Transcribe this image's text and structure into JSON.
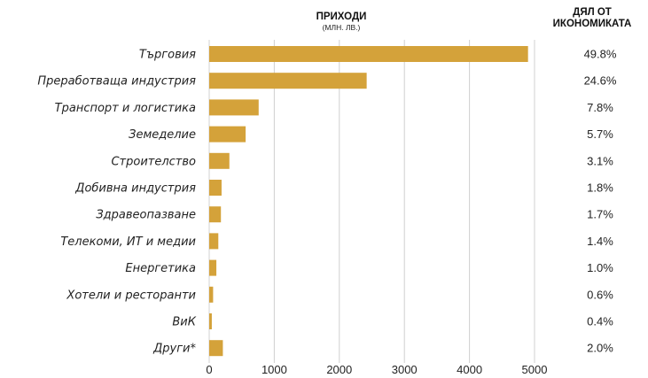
{
  "header": {
    "revenue_title": "ПРИХОДИ",
    "revenue_unit": "(МЛН. ЛВ.)",
    "share_title_line1": "ДЯЛ ОТ",
    "share_title_line2": "ИКОНОМИКАТА"
  },
  "chart_data": {
    "type": "bar",
    "orientation": "horizontal",
    "categories": [
      "Търговия",
      "Преработваща индустрия",
      "Транспорт и логистика",
      "Земеделие",
      "Строителство",
      "Добивна индустрия",
      "Здравеопазване",
      "Телекоми, ИТ и медии",
      "Енергетика",
      "Хотели и ресторанти",
      "ВиК",
      "Други*"
    ],
    "values": [
      4900,
      2420,
      760,
      560,
      310,
      190,
      180,
      140,
      110,
      60,
      40,
      210
    ],
    "shares": [
      "49.8%",
      "24.6%",
      "7.8%",
      "5.7%",
      "3.1%",
      "1.8%",
      "1.7%",
      "1.4%",
      "1.0%",
      "0.6%",
      "0.4%",
      "2.0%"
    ],
    "xlim": [
      0,
      5000
    ],
    "xticks": [
      "0",
      "1000",
      "2000",
      "3000",
      "4000",
      "5000"
    ],
    "grid": true,
    "bar_color": "#d4a23a"
  }
}
